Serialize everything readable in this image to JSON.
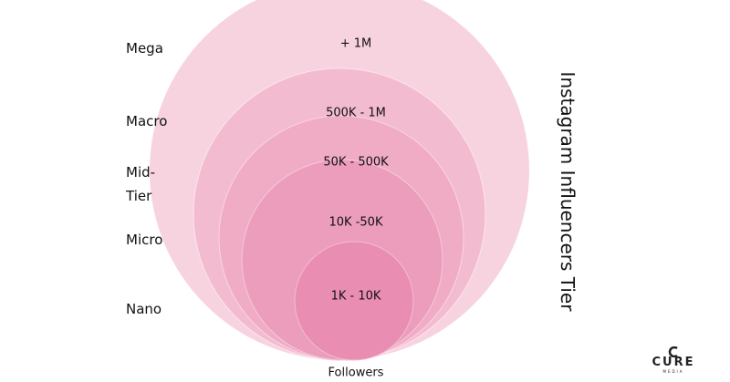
{
  "title": "Instagram Influencers Tier",
  "tiers": [
    {
      "name": "Mega",
      "range": "+ 1M"
    },
    {
      "name": "Macro",
      "range": "500K - 1M"
    },
    {
      "name": "Mid-Tier",
      "range": "50K - 500K"
    },
    {
      "name": "Micro",
      "range": "10K -50K"
    },
    {
      "name": "Nano",
      "range": "1K - 10K"
    }
  ],
  "footer": "Followers",
  "logo": {
    "name": "CURE",
    "sub": "MEDIA"
  }
}
